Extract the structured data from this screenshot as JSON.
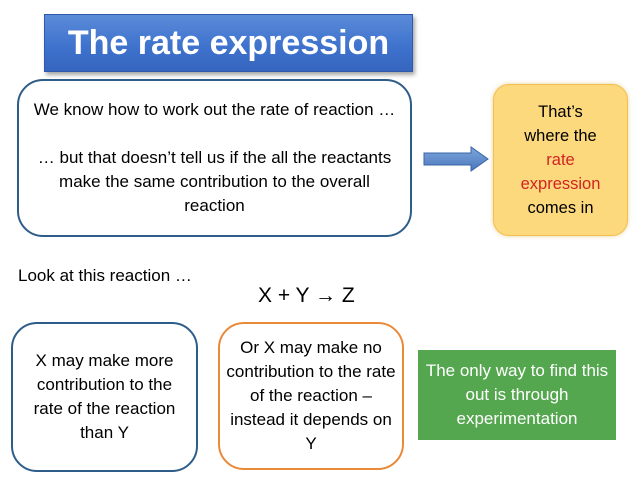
{
  "title": "The rate expression",
  "intro": {
    "line1": "We know how to work out the rate of reaction …",
    "line2": "… but that doesn’t tell us if the all the reactants make the same  contribution to the overall reaction"
  },
  "callout": {
    "line1": "That’s",
    "line2": "where the",
    "highlight1": "rate",
    "highlight2": "expression",
    "line3": "comes in"
  },
  "look_text": "Look at this reaction …",
  "equation": "X + Y → Z",
  "option_x": "X may make more contribution to the rate of the reaction than Y",
  "option_y": "Or X may make no contribution to the rate of the reaction – instead it depends on Y",
  "conclusion": "The only way to find this out is through experimentation",
  "colors": {
    "title_bg": "#4472c4",
    "box_border_blue": "#2f5d8a",
    "box_border_orange": "#ea8a38",
    "callout_bg": "#fdd97e",
    "highlight_red": "#d22323",
    "conclusion_bg": "#55a74f",
    "arrow_fill": "#4f81bd"
  },
  "icons": {
    "arrow": "right-arrow-icon"
  }
}
